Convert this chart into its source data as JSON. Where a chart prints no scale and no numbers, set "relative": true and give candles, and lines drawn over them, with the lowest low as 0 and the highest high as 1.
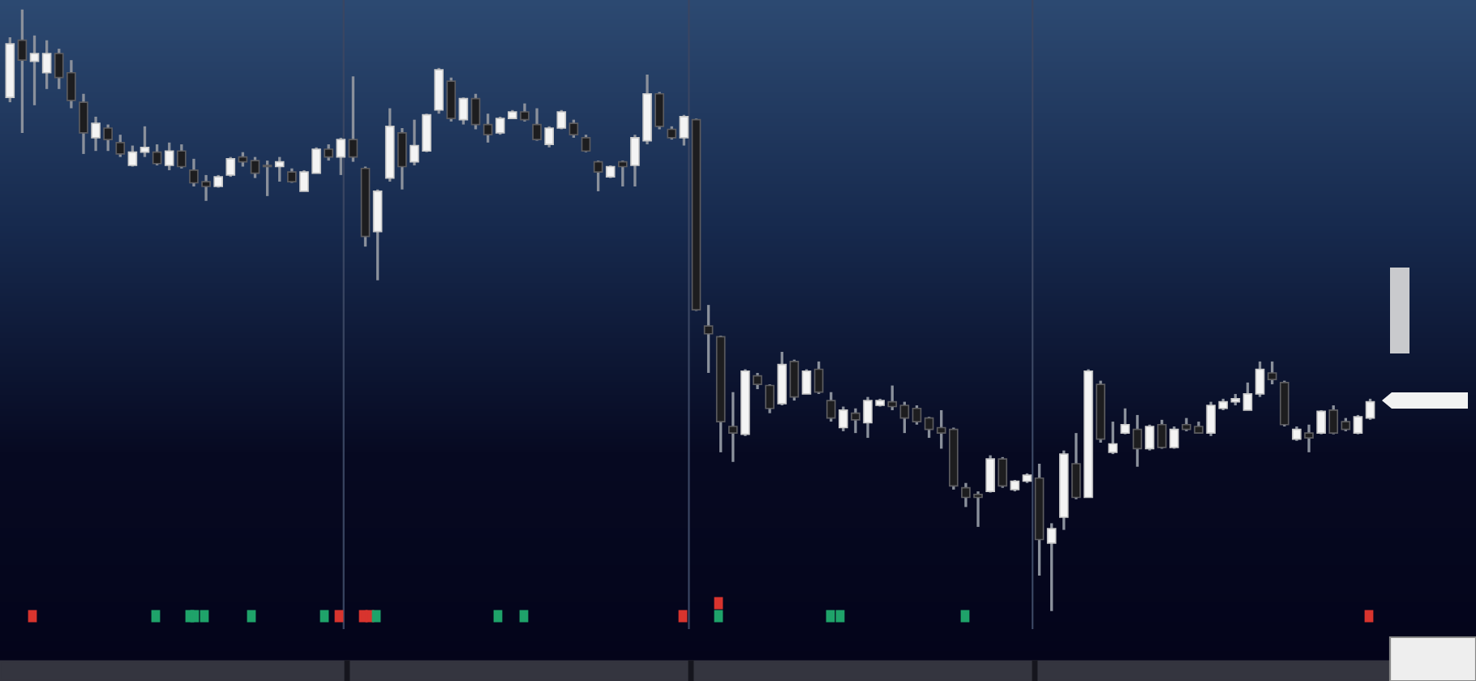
{
  "chart_data": {
    "type": "candlestick",
    "relative": true,
    "categories": [
      null,
      null,
      null,
      null,
      null,
      null,
      null,
      null,
      null,
      null,
      null,
      null,
      null,
      null,
      null,
      null,
      null,
      null,
      null,
      null,
      null,
      null,
      null,
      null,
      null,
      null,
      null,
      null,
      null,
      null,
      null,
      null,
      null,
      null,
      null,
      null,
      null,
      null,
      null,
      null,
      null,
      null,
      null,
      null,
      null,
      null,
      null,
      null,
      null,
      null,
      null,
      null,
      null,
      null,
      null,
      null,
      null,
      null,
      null,
      null,
      null,
      null,
      null,
      null,
      null,
      null,
      null,
      null,
      null,
      null,
      null,
      null,
      null,
      null,
      null,
      null,
      null,
      null,
      null,
      null,
      null,
      null,
      null,
      null,
      null,
      null,
      null,
      null,
      null,
      null,
      null,
      null,
      null,
      null,
      null,
      null,
      null,
      null,
      null,
      null,
      null,
      null,
      null,
      null,
      null,
      null,
      null,
      null,
      null,
      null,
      null,
      null
    ],
    "ohlc": [
      [
        0.854,
        0.954,
        0.846,
        0.943
      ],
      [
        0.949,
        1,
        0.795,
        0.916
      ],
      [
        0.914,
        0.957,
        0.841,
        0.927
      ],
      [
        0.895,
        0.949,
        0.868,
        0.927
      ],
      [
        0.927,
        0.935,
        0.868,
        0.887
      ],
      [
        0.895,
        0.916,
        0.836,
        0.849
      ],
      [
        0.846,
        0.86,
        0.76,
        0.795
      ],
      [
        0.787,
        0.822,
        0.765,
        0.811
      ],
      [
        0.803,
        0.809,
        0.765,
        0.784
      ],
      [
        0.779,
        0.792,
        0.755,
        0.76
      ],
      [
        0.741,
        0.774,
        0.739,
        0.763
      ],
      [
        0.763,
        0.806,
        0.755,
        0.771
      ],
      [
        0.763,
        0.776,
        0.741,
        0.744
      ],
      [
        0.741,
        0.779,
        0.733,
        0.765
      ],
      [
        0.765,
        0.776,
        0.736,
        0.739
      ],
      [
        0.733,
        0.752,
        0.706,
        0.712
      ],
      [
        0.714,
        0.725,
        0.682,
        0.706
      ],
      [
        0.706,
        0.725,
        0.704,
        0.722
      ],
      [
        0.725,
        0.755,
        0.722,
        0.752
      ],
      [
        0.755,
        0.763,
        0.739,
        0.747
      ],
      [
        0.749,
        0.755,
        0.72,
        0.728
      ],
      [
        0.741,
        0.749,
        0.69,
        0.739
      ],
      [
        0.739,
        0.755,
        0.714,
        0.747
      ],
      [
        0.73,
        0.736,
        0.712,
        0.714
      ],
      [
        0.698,
        0.733,
        0.698,
        0.73
      ],
      [
        0.728,
        0.771,
        0.728,
        0.768
      ],
      [
        0.768,
        0.776,
        0.749,
        0.755
      ],
      [
        0.755,
        0.787,
        0.725,
        0.784
      ],
      [
        0.784,
        0.889,
        0.747,
        0.755
      ],
      [
        0.736,
        0.739,
        0.606,
        0.623
      ],
      [
        0.631,
        0.701,
        0.55,
        0.698
      ],
      [
        0.72,
        0.836,
        0.714,
        0.806
      ],
      [
        0.795,
        0.803,
        0.701,
        0.739
      ],
      [
        0.747,
        0.817,
        0.741,
        0.774
      ],
      [
        0.765,
        0.827,
        0.763,
        0.825
      ],
      [
        0.833,
        0.903,
        0.827,
        0.9
      ],
      [
        0.881,
        0.887,
        0.814,
        0.819
      ],
      [
        0.817,
        0.854,
        0.809,
        0.852
      ],
      [
        0.852,
        0.86,
        0.801,
        0.809
      ],
      [
        0.809,
        0.827,
        0.779,
        0.792
      ],
      [
        0.795,
        0.822,
        0.792,
        0.819
      ],
      [
        0.819,
        0.833,
        0.819,
        0.83
      ],
      [
        0.83,
        0.844,
        0.814,
        0.817
      ],
      [
        0.809,
        0.836,
        0.782,
        0.784
      ],
      [
        0.776,
        0.806,
        0.771,
        0.803
      ],
      [
        0.803,
        0.833,
        0.801,
        0.83
      ],
      [
        0.811,
        0.817,
        0.787,
        0.792
      ],
      [
        0.787,
        0.792,
        0.763,
        0.765
      ],
      [
        0.747,
        0.749,
        0.698,
        0.73
      ],
      [
        0.722,
        0.741,
        0.72,
        0.739
      ],
      [
        0.747,
        0.749,
        0.706,
        0.739
      ],
      [
        0.741,
        0.792,
        0.706,
        0.787
      ],
      [
        0.782,
        0.892,
        0.776,
        0.86
      ],
      [
        0.86,
        0.863,
        0.801,
        0.806
      ],
      [
        0.801,
        0.806,
        0.784,
        0.787
      ],
      [
        0.787,
        0.825,
        0.774,
        0.822
      ],
      [
        0.817,
        0.819,
        0.499,
        0.501
      ],
      [
        0.474,
        0.509,
        0.396,
        0.461
      ],
      [
        0.456,
        0.458,
        0.264,
        0.315
      ],
      [
        0.307,
        0.364,
        0.248,
        0.296
      ],
      [
        0.294,
        0.402,
        0.291,
        0.399
      ],
      [
        0.391,
        0.396,
        0.369,
        0.377
      ],
      [
        0.375,
        0.377,
        0.329,
        0.337
      ],
      [
        0.345,
        0.431,
        0.342,
        0.41
      ],
      [
        0.415,
        0.418,
        0.35,
        0.356
      ],
      [
        0.361,
        0.402,
        0.361,
        0.399
      ],
      [
        0.402,
        0.415,
        0.361,
        0.364
      ],
      [
        0.35,
        0.364,
        0.315,
        0.321
      ],
      [
        0.305,
        0.34,
        0.299,
        0.334
      ],
      [
        0.329,
        0.337,
        0.296,
        0.318
      ],
      [
        0.313,
        0.356,
        0.288,
        0.35
      ],
      [
        0.342,
        0.353,
        0.34,
        0.35
      ],
      [
        0.348,
        0.375,
        0.334,
        0.34
      ],
      [
        0.342,
        0.348,
        0.296,
        0.321
      ],
      [
        0.337,
        0.342,
        0.31,
        0.315
      ],
      [
        0.321,
        0.323,
        0.288,
        0.302
      ],
      [
        0.305,
        0.334,
        0.27,
        0.296
      ],
      [
        0.302,
        0.305,
        0.202,
        0.208
      ],
      [
        0.205,
        0.213,
        0.173,
        0.189
      ],
      [
        0.194,
        0.199,
        0.14,
        0.189
      ],
      [
        0.199,
        0.259,
        0.197,
        0.253
      ],
      [
        0.253,
        0.256,
        0.205,
        0.208
      ],
      [
        0.202,
        0.218,
        0.199,
        0.216
      ],
      [
        0.216,
        0.229,
        0.213,
        0.226
      ],
      [
        0.221,
        0.245,
        0.059,
        0.119
      ],
      [
        0.113,
        0.146,
        0,
        0.137
      ],
      [
        0.156,
        0.267,
        0.135,
        0.261
      ],
      [
        0.245,
        0.296,
        0.186,
        0.189
      ],
      [
        0.189,
        0.402,
        0.189,
        0.399
      ],
      [
        0.377,
        0.383,
        0.28,
        0.286
      ],
      [
        0.264,
        0.315,
        0.261,
        0.278
      ],
      [
        0.296,
        0.337,
        0.294,
        0.31
      ],
      [
        0.302,
        0.326,
        0.24,
        0.27
      ],
      [
        0.27,
        0.31,
        0.267,
        0.307
      ],
      [
        0.31,
        0.318,
        0.27,
        0.272
      ],
      [
        0.272,
        0.307,
        0.27,
        0.302
      ],
      [
        0.31,
        0.321,
        0.299,
        0.302
      ],
      [
        0.307,
        0.315,
        0.296,
        0.296
      ],
      [
        0.296,
        0.348,
        0.291,
        0.342
      ],
      [
        0.337,
        0.353,
        0.334,
        0.348
      ],
      [
        0.348,
        0.361,
        0.342,
        0.353
      ],
      [
        0.334,
        0.38,
        0.334,
        0.361
      ],
      [
        0.361,
        0.415,
        0.356,
        0.402
      ],
      [
        0.396,
        0.415,
        0.377,
        0.385
      ],
      [
        0.38,
        0.383,
        0.307,
        0.31
      ],
      [
        0.286,
        0.307,
        0.283,
        0.302
      ],
      [
        0.296,
        0.31,
        0.264,
        0.288
      ],
      [
        0.296,
        0.334,
        0.294,
        0.332
      ],
      [
        0.334,
        0.342,
        0.294,
        0.296
      ],
      [
        0.315,
        0.321,
        0.299,
        0.302
      ],
      [
        0.296,
        0.326,
        0.294,
        0.323
      ],
      [
        0.321,
        0.353,
        0.318,
        0.348
      ]
    ]
  }
}
